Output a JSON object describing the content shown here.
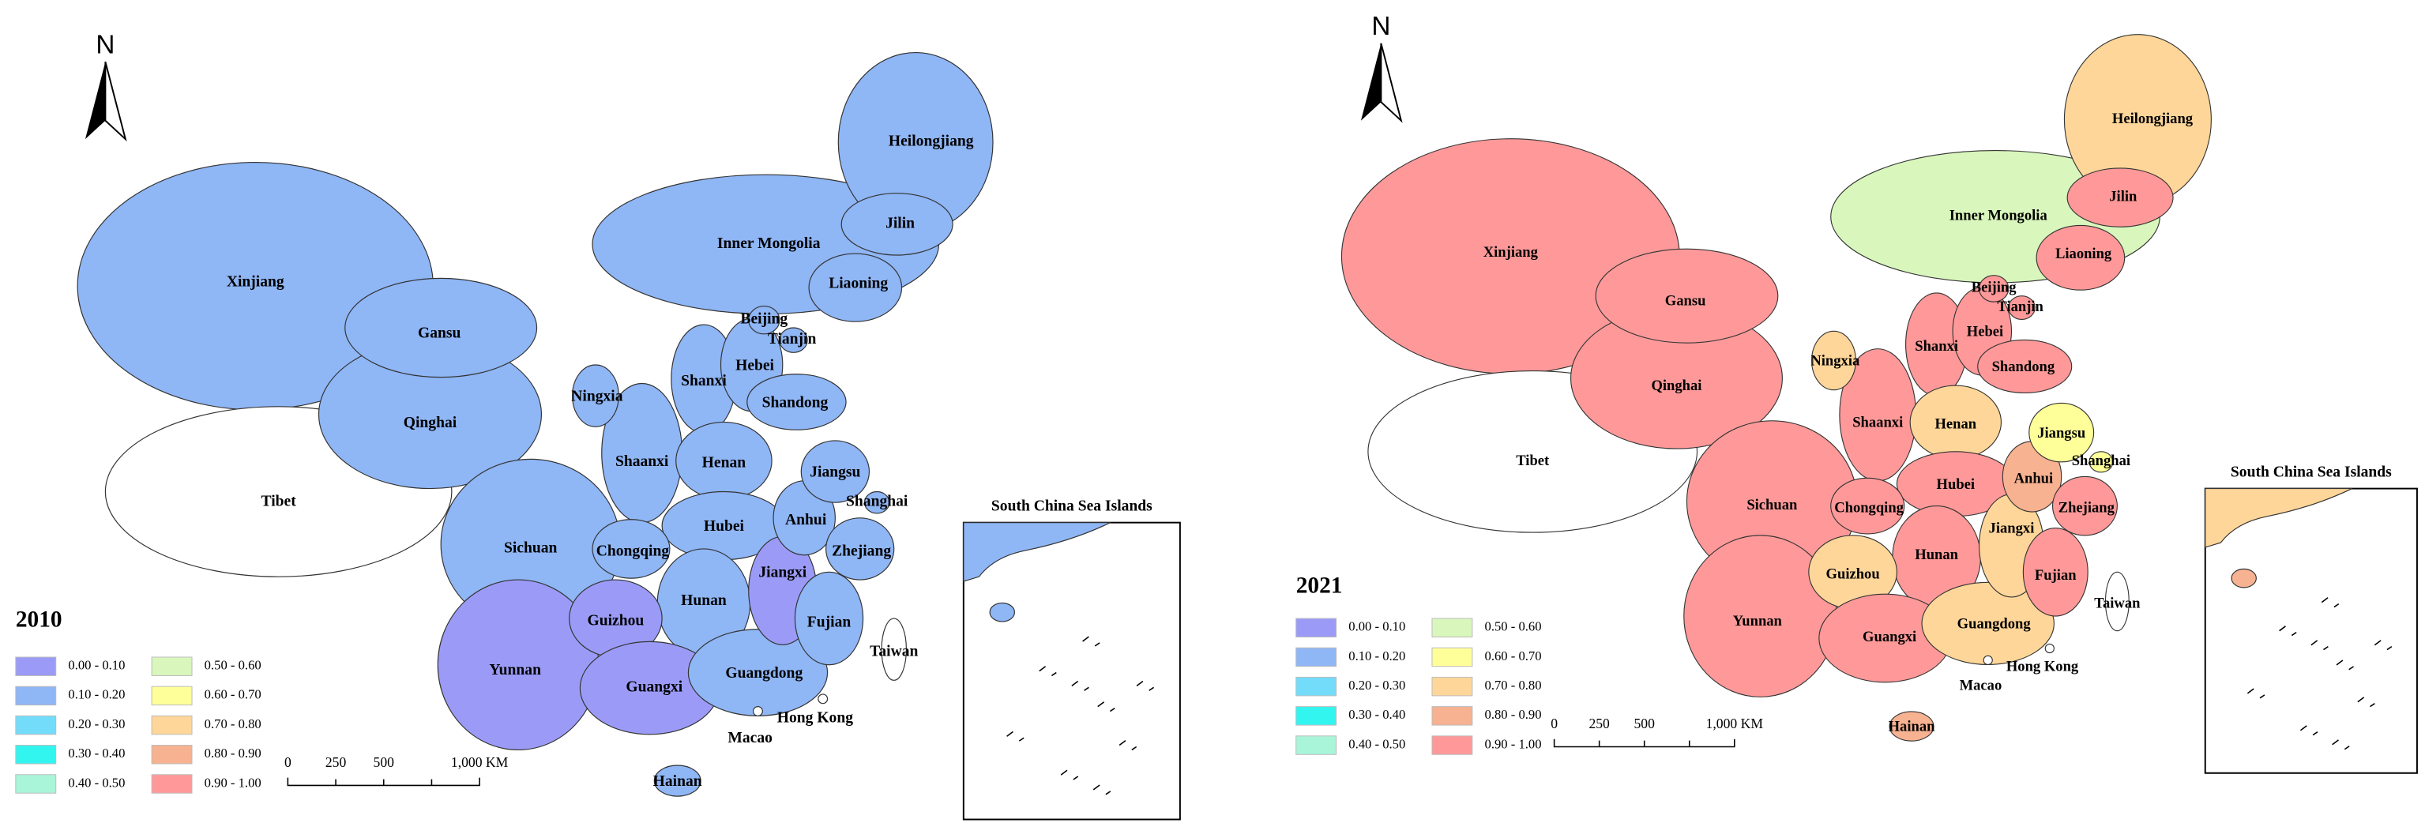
{
  "maps": [
    {
      "year": "2010",
      "north": "N",
      "inset_title": "South China Sea Islands",
      "scale_labels": [
        "0",
        "250",
        "500",
        "1,000 KM"
      ],
      "legend": [
        {
          "label": "0.00 - 0.10",
          "color": "#9b9bf7"
        },
        {
          "label": "0.10 - 0.20",
          "color": "#8fb6f5"
        },
        {
          "label": "0.20 - 0.30",
          "color": "#73dcfa"
        },
        {
          "label": "0.30 - 0.40",
          "color": "#33f5f0"
        },
        {
          "label": "0.40 - 0.50",
          "color": "#a9f5d9"
        },
        {
          "label": "0.50 - 0.60",
          "color": "#d9f7bc"
        },
        {
          "label": "0.60 - 0.70",
          "color": "#ffff99"
        },
        {
          "label": "0.70 - 0.80",
          "color": "#ffd699"
        },
        {
          "label": "0.80 - 0.90",
          "color": "#f7b291"
        },
        {
          "label": "0.90 - 1.00",
          "color": "#ff9999"
        }
      ],
      "provinces": [
        {
          "name": "Xinjiang",
          "color": "#8fb6f5"
        },
        {
          "name": "Tibet",
          "color": "#ffffff"
        },
        {
          "name": "Qinghai",
          "color": "#8fb6f5"
        },
        {
          "name": "Gansu",
          "color": "#8fb6f5"
        },
        {
          "name": "Inner Mongolia",
          "color": "#8fb6f5"
        },
        {
          "name": "Heilongjiang",
          "color": "#8fb6f5"
        },
        {
          "name": "Jilin",
          "color": "#8fb6f5"
        },
        {
          "name": "Liaoning",
          "color": "#8fb6f5"
        },
        {
          "name": "Sichuan",
          "color": "#8fb6f5"
        },
        {
          "name": "Yunnan",
          "color": "#9b9bf7"
        },
        {
          "name": "Shaanxi",
          "color": "#8fb6f5"
        },
        {
          "name": "Shanxi",
          "color": "#8fb6f5"
        },
        {
          "name": "Hebei",
          "color": "#8fb6f5"
        },
        {
          "name": "Beijing",
          "color": "#8fb6f5"
        },
        {
          "name": "Tianjin",
          "color": "#8fb6f5"
        },
        {
          "name": "Shandong",
          "color": "#8fb6f5"
        },
        {
          "name": "Ningxia",
          "color": "#8fb6f5"
        },
        {
          "name": "Henan",
          "color": "#8fb6f5"
        },
        {
          "name": "Hubei",
          "color": "#8fb6f5"
        },
        {
          "name": "Chongqing",
          "color": "#8fb6f5"
        },
        {
          "name": "Hunan",
          "color": "#8fb6f5"
        },
        {
          "name": "Guizhou",
          "color": "#9b9bf7"
        },
        {
          "name": "Guangxi",
          "color": "#9b9bf7"
        },
        {
          "name": "Guangdong",
          "color": "#8fb6f5"
        },
        {
          "name": "Jiangxi",
          "color": "#9b9bf7"
        },
        {
          "name": "Fujian",
          "color": "#8fb6f5"
        },
        {
          "name": "Anhui",
          "color": "#8fb6f5"
        },
        {
          "name": "Jiangsu",
          "color": "#8fb6f5"
        },
        {
          "name": "Zhejiang",
          "color": "#8fb6f5"
        },
        {
          "name": "Shanghai",
          "color": "#8fb6f5"
        },
        {
          "name": "Taiwan",
          "color": "#ffffff"
        },
        {
          "name": "Hong Kong",
          "color": "#ffffff"
        },
        {
          "name": "Macao",
          "color": "#ffffff"
        },
        {
          "name": "Hainan",
          "color": "#8fb6f5"
        }
      ]
    },
    {
      "year": "2021",
      "north": "N",
      "inset_title": "South China Sea Islands",
      "scale_labels": [
        "0",
        "250",
        "500",
        "1,000 KM"
      ],
      "legend": [
        {
          "label": "0.00 - 0.10",
          "color": "#9b9bf7"
        },
        {
          "label": "0.10 - 0.20",
          "color": "#8fb6f5"
        },
        {
          "label": "0.20 - 0.30",
          "color": "#73dcfa"
        },
        {
          "label": "0.30 - 0.40",
          "color": "#33f5f0"
        },
        {
          "label": "0.40 - 0.50",
          "color": "#a9f5d9"
        },
        {
          "label": "0.50 - 0.60",
          "color": "#d9f7bc"
        },
        {
          "label": "0.60 - 0.70",
          "color": "#ffff99"
        },
        {
          "label": "0.70 - 0.80",
          "color": "#ffd699"
        },
        {
          "label": "0.80 - 0.90",
          "color": "#f7b291"
        },
        {
          "label": "0.90 - 1.00",
          "color": "#ff9999"
        }
      ],
      "provinces": [
        {
          "name": "Xinjiang",
          "color": "#ff9999"
        },
        {
          "name": "Tibet",
          "color": "#ffffff"
        },
        {
          "name": "Qinghai",
          "color": "#ff9999"
        },
        {
          "name": "Gansu",
          "color": "#ff9999"
        },
        {
          "name": "Inner Mongolia",
          "color": "#d9f7bc"
        },
        {
          "name": "Heilongjiang",
          "color": "#ffd699"
        },
        {
          "name": "Jilin",
          "color": "#ff9999"
        },
        {
          "name": "Liaoning",
          "color": "#ff9999"
        },
        {
          "name": "Sichuan",
          "color": "#ff9999"
        },
        {
          "name": "Yunnan",
          "color": "#ff9999"
        },
        {
          "name": "Shaanxi",
          "color": "#ff9999"
        },
        {
          "name": "Shanxi",
          "color": "#ff9999"
        },
        {
          "name": "Hebei",
          "color": "#ff9999"
        },
        {
          "name": "Beijing",
          "color": "#ff9999"
        },
        {
          "name": "Tianjin",
          "color": "#ff9999"
        },
        {
          "name": "Shandong",
          "color": "#ff9999"
        },
        {
          "name": "Ningxia",
          "color": "#ffd699"
        },
        {
          "name": "Henan",
          "color": "#ffd699"
        },
        {
          "name": "Hubei",
          "color": "#ff9999"
        },
        {
          "name": "Chongqing",
          "color": "#ff9999"
        },
        {
          "name": "Hunan",
          "color": "#ff9999"
        },
        {
          "name": "Guizhou",
          "color": "#ffd699"
        },
        {
          "name": "Guangxi",
          "color": "#ff9999"
        },
        {
          "name": "Guangdong",
          "color": "#ffd699"
        },
        {
          "name": "Jiangxi",
          "color": "#ffd699"
        },
        {
          "name": "Fujian",
          "color": "#ff9999"
        },
        {
          "name": "Anhui",
          "color": "#f7b291"
        },
        {
          "name": "Jiangsu",
          "color": "#ffff99"
        },
        {
          "name": "Zhejiang",
          "color": "#ff9999"
        },
        {
          "name": "Shanghai",
          "color": "#ffff99"
        },
        {
          "name": "Taiwan",
          "color": "#ffffff"
        },
        {
          "name": "Hong Kong",
          "color": "#ffffff"
        },
        {
          "name": "Macao",
          "color": "#ffffff"
        },
        {
          "name": "Hainan",
          "color": "#f7b291"
        }
      ]
    }
  ]
}
